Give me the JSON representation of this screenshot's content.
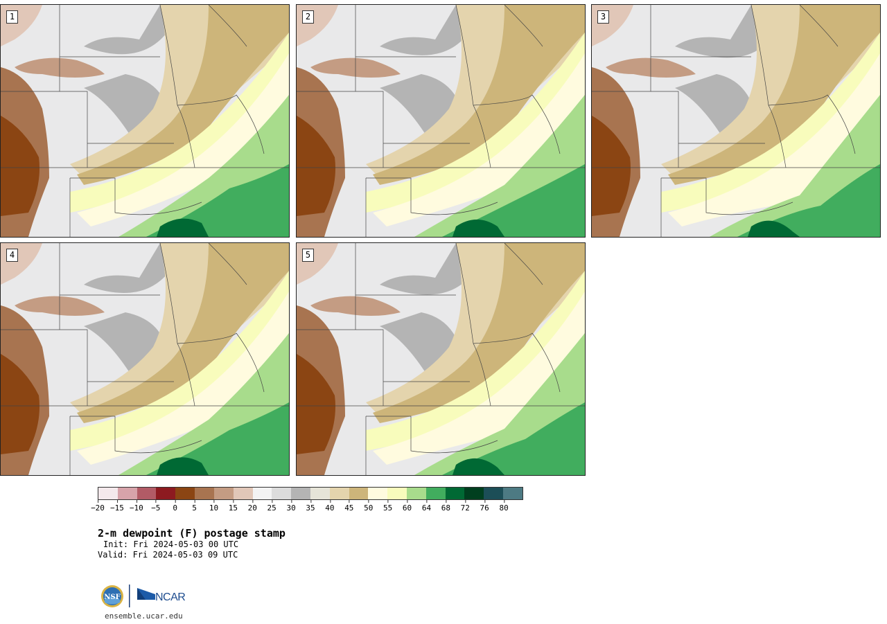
{
  "panels": [
    {
      "label": "1"
    },
    {
      "label": "2"
    },
    {
      "label": "3"
    },
    {
      "label": "4"
    },
    {
      "label": "5"
    }
  ],
  "colorbar": {
    "ticks": [
      "−20",
      "−15",
      "−10",
      "−5",
      "0",
      "5",
      "10",
      "15",
      "20",
      "25",
      "30",
      "35",
      "40",
      "45",
      "50",
      "55",
      "60",
      "64",
      "68",
      "72",
      "76",
      "80"
    ],
    "colors": [
      "#f4e9ec",
      "#d7a3aa",
      "#b25b66",
      "#8d1a20",
      "#8b4513",
      "#a87450",
      "#c49c83",
      "#e1c7b8",
      "#f3f3f3",
      "#dcdcdc",
      "#b4b4b4",
      "#e6e4d8",
      "#e4d4ad",
      "#cdb57a",
      "#fffbdf",
      "#f8fcbc",
      "#a8dc8c",
      "#41ad5e",
      "#006934",
      "#003f1f",
      "#1c4e57",
      "#4d7a83"
    ]
  },
  "title": "2-m dewpoint (F) postage stamp",
  "init": "Init: Fri 2024-05-03 00 UTC",
  "valid": "Valid: Fri 2024-05-03 09 UTC",
  "logos": {
    "nsf_text": "NSF",
    "ncar_text": "NCAR"
  },
  "website": "ensemble.ucar.edu"
}
